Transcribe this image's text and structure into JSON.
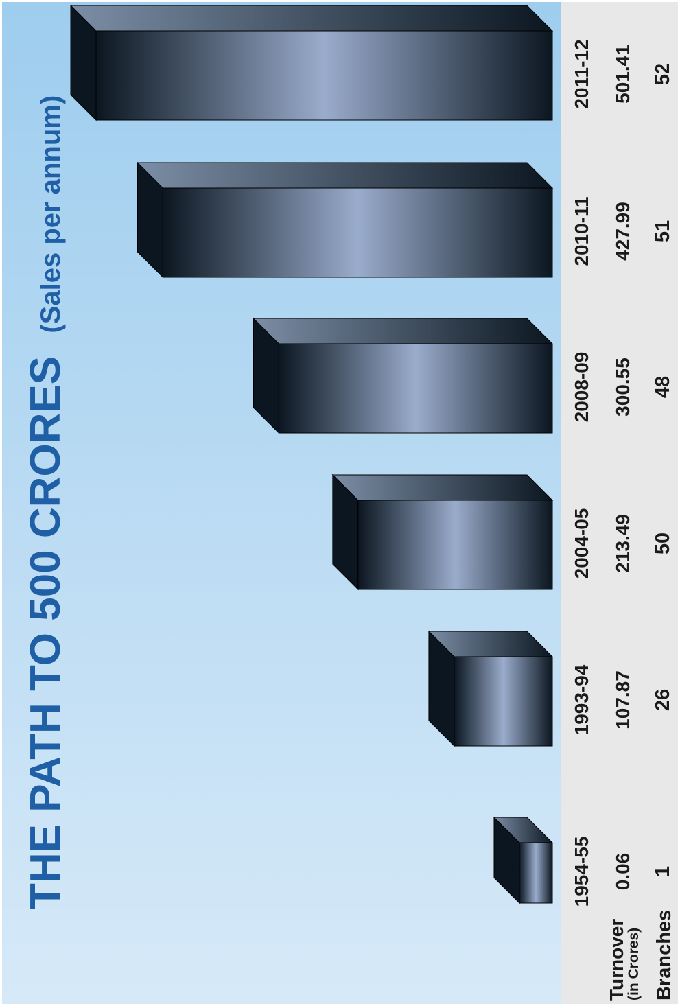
{
  "title": {
    "main": "THE PATH TO 500 CRORES",
    "sub": "(Sales per annum)"
  },
  "row_labels": {
    "turnover": "Turnover",
    "turnover_unit": "(in Crores)",
    "branches": "Branches"
  },
  "colors": {
    "title": "#1f5fa6",
    "panel_top": "#9ecdee",
    "panel_bottom": "#d6e9f8",
    "table_bg": "#e8e8e8",
    "bar_dark": "#0b1620",
    "bar_light": "#9aaccc"
  },
  "chart_data": {
    "type": "bar",
    "orientation": "horizontal (page rotated 90 degrees)",
    "title": "THE PATH TO 500 CRORES",
    "subtitle": "(Sales per annum)",
    "categories": [
      "1954-55",
      "1993-94",
      "2004-05",
      "2008-09",
      "2010-11",
      "2011-12"
    ],
    "series": [
      {
        "name": "Turnover",
        "values": [
          0.06,
          107.87,
          213.49,
          300.55,
          427.99,
          501.41
        ]
      },
      {
        "name": "Branches",
        "values": [
          1,
          26,
          50,
          48,
          51,
          52
        ]
      }
    ],
    "value_labels": {
      "turnover": [
        "0.06",
        "107.87",
        "213.49",
        "300.55",
        "427.99",
        "501.41"
      ],
      "branches": [
        "1",
        "26",
        "50",
        "48",
        "51",
        "52"
      ]
    },
    "grid": false,
    "legend": "none"
  }
}
